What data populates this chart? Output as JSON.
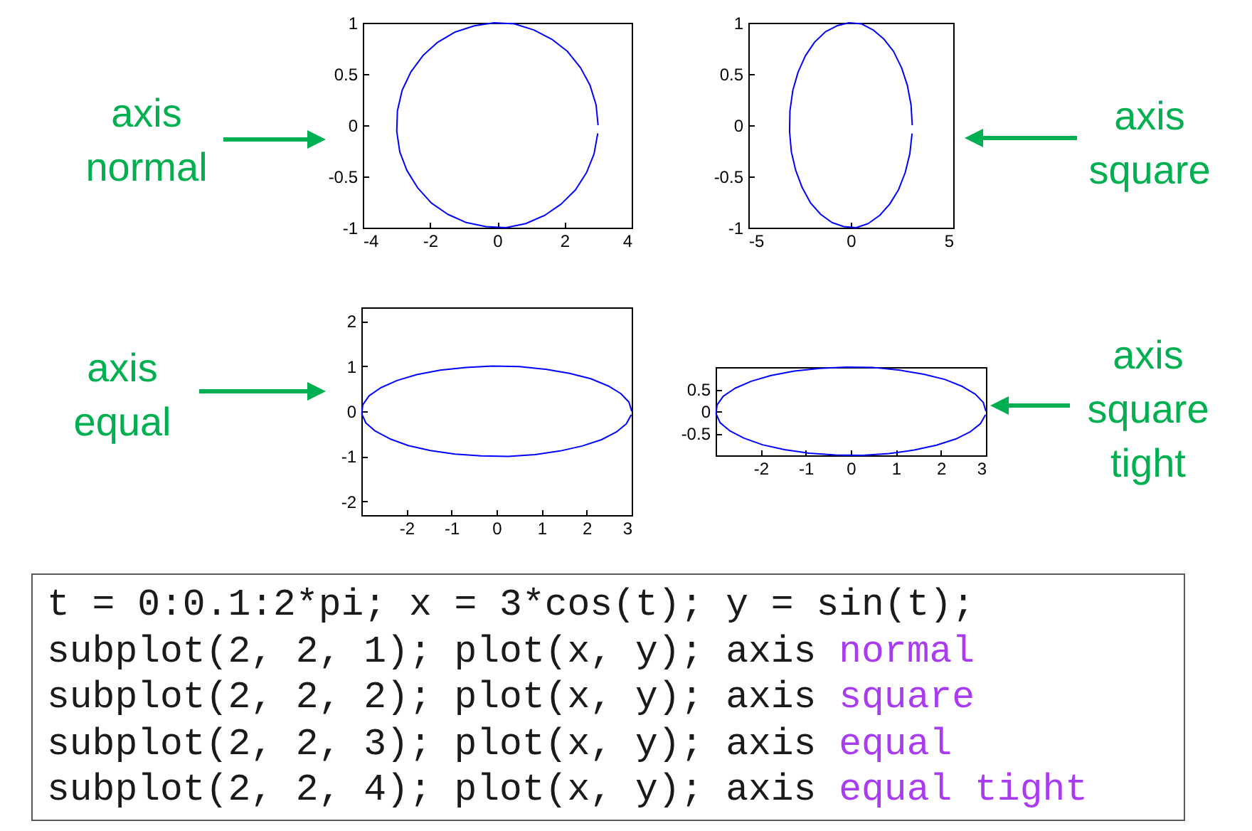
{
  "chart_data": [
    {
      "type": "line",
      "annotations": [
        "axis normal"
      ],
      "x": [
        3,
        2.94,
        2.76,
        2.48,
        2.09,
        1.62,
        1.09,
        0.51,
        -0.09,
        -0.68,
        -1.25,
        -1.77,
        -2.21,
        -2.57,
        -2.83,
        -2.97,
        -2.99,
        -2.9,
        -2.69,
        -2.37,
        -1.96,
        -1.47,
        -0.92,
        -0.34,
        0.26,
        0.85,
        1.41,
        1.9,
        2.33,
        2.66,
        2.88,
        2.99
      ],
      "values": [
        0,
        0.2,
        0.39,
        0.56,
        0.72,
        0.84,
        0.93,
        0.99,
        1,
        0.97,
        0.91,
        0.81,
        0.68,
        0.52,
        0.34,
        0.14,
        -0.06,
        -0.26,
        -0.44,
        -0.61,
        -0.76,
        -0.87,
        -0.95,
        -0.99,
        -1,
        -0.96,
        -0.88,
        -0.77,
        -0.63,
        -0.46,
        -0.28,
        -0.08
      ],
      "color": "#0000ff",
      "xlim": [
        -4,
        4
      ],
      "ylim": [
        -1,
        1
      ],
      "xticks": [
        -4,
        -2,
        0,
        2,
        4
      ],
      "yticks": [
        -1,
        -0.5,
        0,
        0.5,
        1
      ],
      "grid": false
    },
    {
      "type": "line",
      "annotations": [
        "axis square"
      ],
      "x": [
        3,
        2.94,
        2.76,
        2.48,
        2.09,
        1.62,
        1.09,
        0.51,
        -0.09,
        -0.68,
        -1.25,
        -1.77,
        -2.21,
        -2.57,
        -2.83,
        -2.97,
        -2.99,
        -2.9,
        -2.69,
        -2.37,
        -1.96,
        -1.47,
        -0.92,
        -0.34,
        0.26,
        0.85,
        1.41,
        1.9,
        2.33,
        2.66,
        2.88,
        2.99
      ],
      "values": [
        0,
        0.2,
        0.39,
        0.56,
        0.72,
        0.84,
        0.93,
        0.99,
        1,
        0.97,
        0.91,
        0.81,
        0.68,
        0.52,
        0.34,
        0.14,
        -0.06,
        -0.26,
        -0.44,
        -0.61,
        -0.76,
        -0.87,
        -0.95,
        -0.99,
        -1,
        -0.96,
        -0.88,
        -0.77,
        -0.63,
        -0.46,
        -0.28,
        -0.08
      ],
      "color": "#0000ff",
      "xlim": [
        -5,
        5
      ],
      "ylim": [
        -1,
        1
      ],
      "xticks": [
        -5,
        0,
        5
      ],
      "yticks": [
        -1,
        -0.5,
        0,
        0.5,
        1
      ],
      "grid": false
    },
    {
      "type": "line",
      "annotations": [
        "axis equal"
      ],
      "x": [
        3,
        2.94,
        2.76,
        2.48,
        2.09,
        1.62,
        1.09,
        0.51,
        -0.09,
        -0.68,
        -1.25,
        -1.77,
        -2.21,
        -2.57,
        -2.83,
        -2.97,
        -2.99,
        -2.9,
        -2.69,
        -2.37,
        -1.96,
        -1.47,
        -0.92,
        -0.34,
        0.26,
        0.85,
        1.41,
        1.9,
        2.33,
        2.66,
        2.88,
        2.99
      ],
      "values": [
        0,
        0.2,
        0.39,
        0.56,
        0.72,
        0.84,
        0.93,
        0.99,
        1,
        0.97,
        0.91,
        0.81,
        0.68,
        0.52,
        0.34,
        0.14,
        -0.06,
        -0.26,
        -0.44,
        -0.61,
        -0.76,
        -0.87,
        -0.95,
        -0.99,
        -1,
        -0.96,
        -0.88,
        -0.77,
        -0.63,
        -0.46,
        -0.28,
        -0.08
      ],
      "color": "#0000ff",
      "xlim": [
        -3,
        3
      ],
      "ylim": [
        -2.3,
        2.3
      ],
      "xticks": [
        -2,
        -1,
        0,
        1,
        2,
        3
      ],
      "yticks": [
        -2,
        -1,
        0,
        1,
        2
      ],
      "grid": false
    },
    {
      "type": "line",
      "annotations": [
        "axis square tight"
      ],
      "x": [
        3,
        2.94,
        2.76,
        2.48,
        2.09,
        1.62,
        1.09,
        0.51,
        -0.09,
        -0.68,
        -1.25,
        -1.77,
        -2.21,
        -2.57,
        -2.83,
        -2.97,
        -2.99,
        -2.9,
        -2.69,
        -2.37,
        -1.96,
        -1.47,
        -0.92,
        -0.34,
        0.26,
        0.85,
        1.41,
        1.9,
        2.33,
        2.66,
        2.88,
        2.99
      ],
      "values": [
        0,
        0.2,
        0.39,
        0.56,
        0.72,
        0.84,
        0.93,
        0.99,
        1,
        0.97,
        0.91,
        0.81,
        0.68,
        0.52,
        0.34,
        0.14,
        -0.06,
        -0.26,
        -0.44,
        -0.61,
        -0.76,
        -0.87,
        -0.95,
        -0.99,
        -1,
        -0.96,
        -0.88,
        -0.77,
        -0.63,
        -0.46,
        -0.28,
        -0.08
      ],
      "color": "#0000ff",
      "xlim": [
        -3,
        3
      ],
      "ylim": [
        -1,
        1
      ],
      "xticks": [
        -2,
        -1,
        0,
        1,
        2,
        3
      ],
      "yticks": [
        -0.5,
        0,
        0.5
      ],
      "grid": false
    },
    {
      "type": "other",
      "annotations": [
        "t = 0:0.1:2*pi; x = 3*cos(t); y = sin(t);",
        "subplot(2, 2, 1); plot(x, y); axis",
        "normal",
        "subplot(2, 2, 2); plot(x, y); axis",
        "square",
        "subplot(2, 2, 3); plot(x, y); axis",
        "equal",
        "subplot(2, 2, 4); plot(x, y); axis",
        "equal tight"
      ]
    }
  ]
}
